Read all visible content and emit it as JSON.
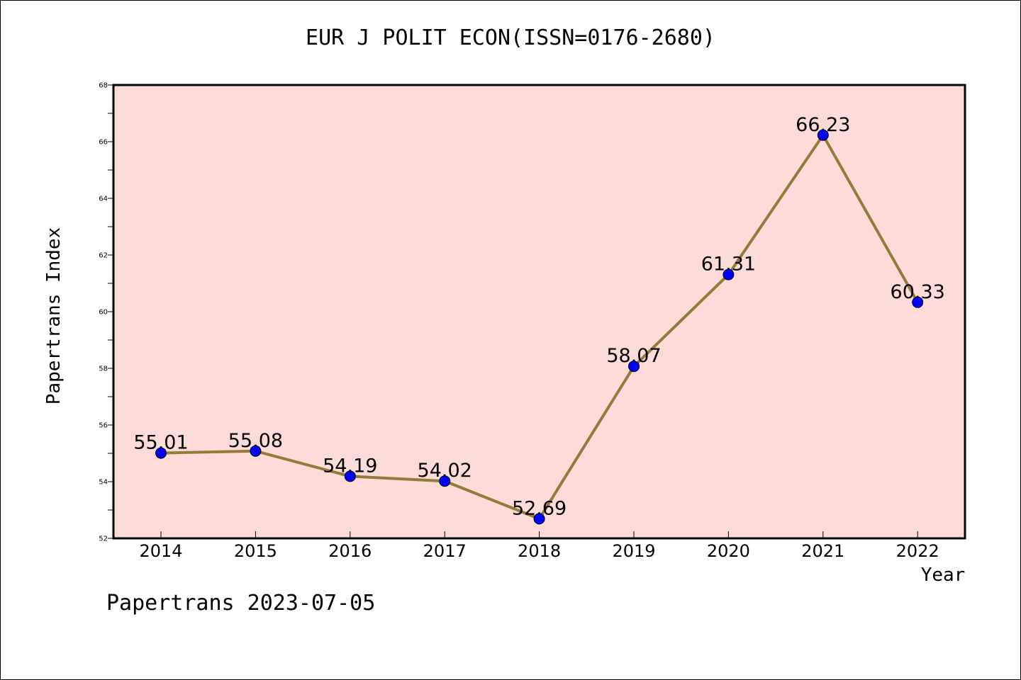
{
  "page": {
    "title": "EUR J POLIT ECON(ISSN=0176-2680)",
    "footer": "Papertrans 2023-07-05"
  },
  "colors": {
    "plot_background": "#fddbd8",
    "line": "#927c39",
    "marker": "#0000ff"
  },
  "chart_data": {
    "type": "line",
    "title": "EUR J POLIT ECON(ISSN=0176-2680)",
    "xlabel": "Year",
    "ylabel": "Papertrans Index",
    "categories": [
      "2014",
      "2015",
      "2016",
      "2017",
      "2018",
      "2019",
      "2020",
      "2021",
      "2022"
    ],
    "series": [
      {
        "values": [
          55.01,
          55.08,
          54.19,
          54.02,
          52.69,
          58.07,
          61.31,
          66.23,
          60.33
        ],
        "labels": [
          "55.01",
          "55.08",
          "54.19",
          "54.02",
          "52.69",
          "58.07",
          "61.31",
          "66.23",
          "60.33"
        ]
      }
    ],
    "ylim": [
      52,
      68
    ],
    "yticks": [
      "52",
      "54",
      "56",
      "58",
      "60",
      "62",
      "64",
      "66",
      "68"
    ],
    "grid": false,
    "legend": "none"
  }
}
